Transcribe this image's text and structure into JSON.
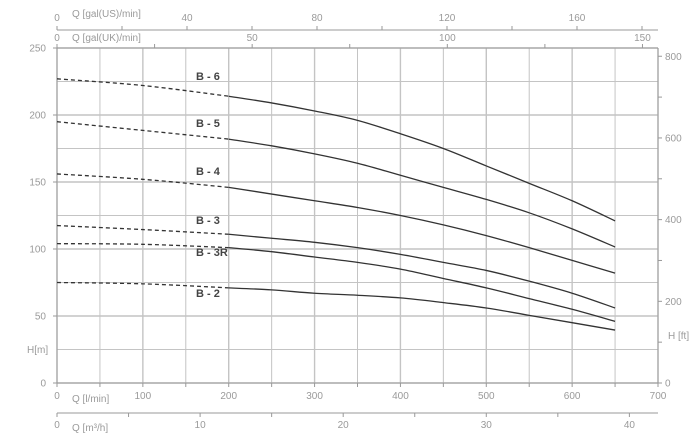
{
  "chart_data": {
    "type": "line",
    "title": "",
    "xlabel": "Q [l/min]",
    "ylabel": "H[m]",
    "y2label": "H [ft]",
    "xlim": [
      0,
      700
    ],
    "ylim": [
      0,
      250
    ],
    "y2lim": [
      0,
      820
    ],
    "grid": true,
    "x_ticks": [
      0,
      100,
      200,
      300,
      400,
      500,
      600,
      700
    ],
    "y_ticks": [
      0,
      50,
      100,
      150,
      200,
      250
    ],
    "y2_ticks": [
      0,
      200,
      400,
      600,
      800
    ],
    "top_axes": [
      {
        "label": "Q [gal(US)/min]",
        "ticks": [
          0,
          40,
          80,
          120,
          160
        ]
      },
      {
        "label": "Q [gal(UK)/min]",
        "ticks": [
          0,
          50,
          100,
          150
        ]
      }
    ],
    "bottom_axis2": {
      "label": "Q [m³/h]",
      "ticks": [
        0,
        10,
        20,
        30,
        40
      ]
    },
    "dashed_until_x": 200,
    "x": [
      0,
      100,
      200,
      250,
      300,
      350,
      400,
      450,
      500,
      550,
      600,
      650
    ],
    "series": [
      {
        "name": "B - 6",
        "values": [
          227,
          222,
          214,
          209,
          203,
          196,
          186,
          175,
          162,
          149,
          136,
          121
        ]
      },
      {
        "name": "B - 5",
        "values": [
          195,
          188.5,
          182,
          177,
          171,
          164,
          155,
          146,
          137,
          127,
          115,
          101.5
        ]
      },
      {
        "name": "B - 4",
        "values": [
          156,
          152,
          146,
          141,
          136,
          131,
          125,
          118,
          110,
          101,
          91.5,
          82
        ]
      },
      {
        "name": "B - 3",
        "values": [
          117.5,
          114.5,
          111,
          108,
          105,
          101,
          96,
          90,
          84,
          76,
          67,
          56
        ]
      },
      {
        "name": "B - 3R",
        "values": [
          104,
          103.5,
          101,
          98,
          94,
          90,
          85,
          78,
          71,
          63,
          55,
          46
        ]
      },
      {
        "name": "B - 2",
        "values": [
          75,
          74,
          71,
          69.5,
          67,
          65.5,
          63.5,
          60,
          56,
          50.5,
          45,
          39.5
        ]
      }
    ],
    "colors": {
      "curve": "#333333",
      "grid": "#c4c4c4",
      "axis_text": "#9a9a9a"
    }
  }
}
